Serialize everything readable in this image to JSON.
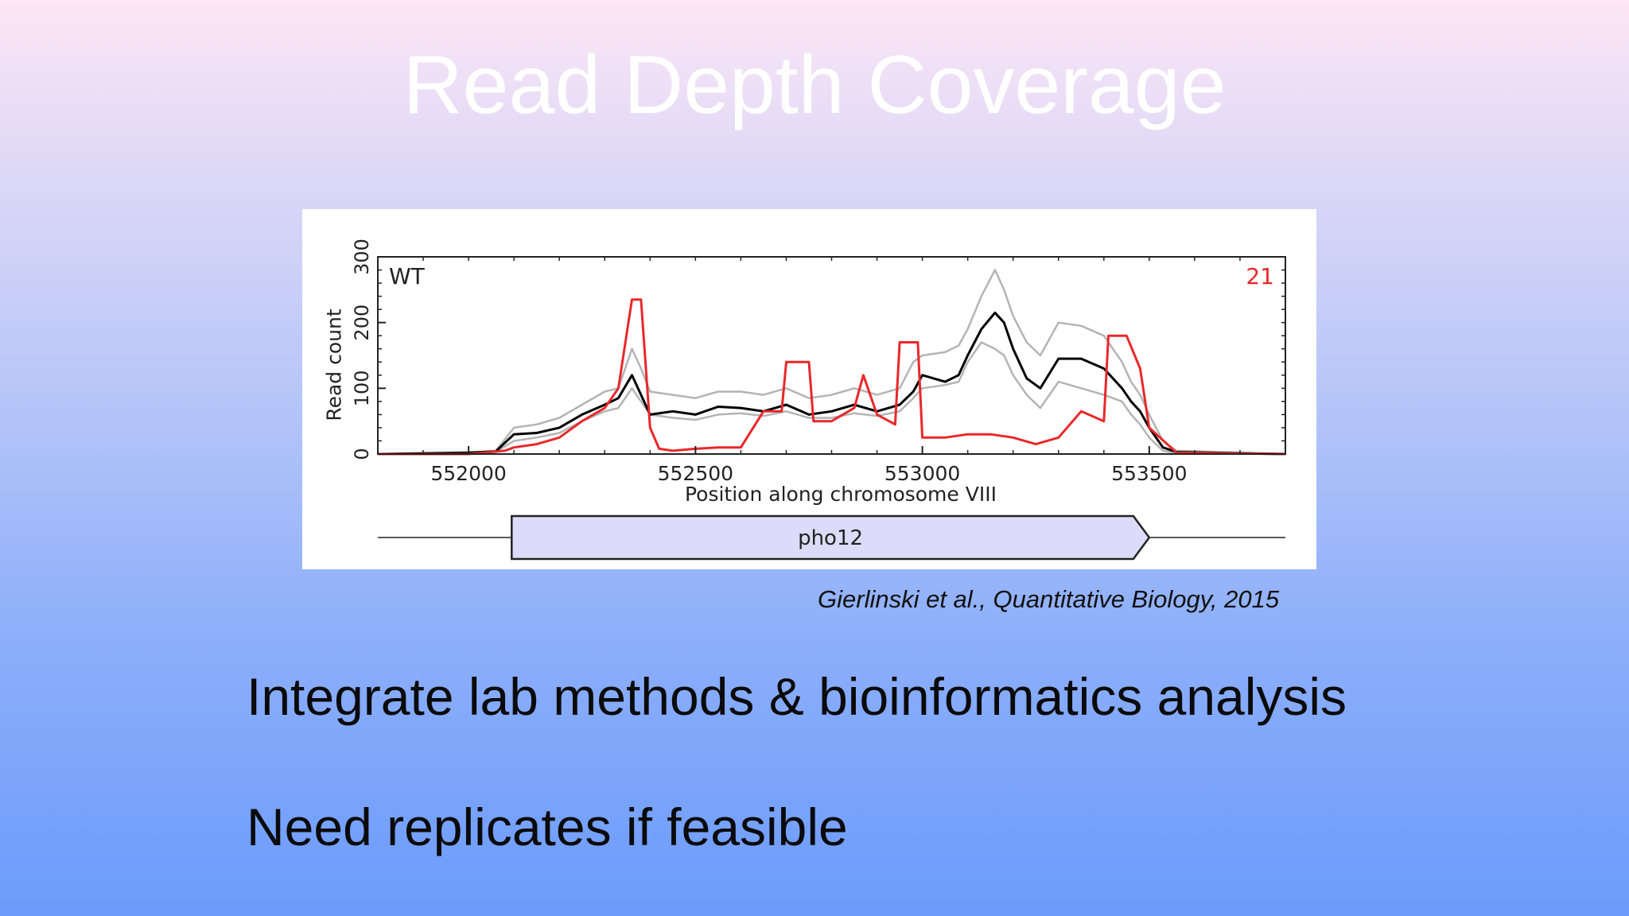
{
  "slide": {
    "title": "Read Depth Coverage",
    "citation": "Gierlinski et al., Quantitative Biology, 2015",
    "bullets": [
      "Integrate lab methods & bioinformatics analysis",
      "Need replicates if feasible"
    ]
  },
  "colors": {
    "red_series": "#e8282a",
    "mean_series": "#000000",
    "band_series": "#b4b4b4",
    "gene_fill": "#dcdcfa"
  },
  "chart_data": {
    "type": "line",
    "title": "",
    "xlabel": "Position along chromosome VIII",
    "ylabel": "Read count",
    "xlim": [
      551800,
      553800
    ],
    "ylim": [
      0,
      300
    ],
    "xticks": [
      552000,
      552500,
      553000,
      553500
    ],
    "yticks": [
      0,
      100,
      200,
      300
    ],
    "grid": false,
    "annotations": {
      "top_left": "WT",
      "top_right": "21"
    },
    "gene": {
      "label": "pho12",
      "start": 552095,
      "end": 553500,
      "strand": "+"
    },
    "series": [
      {
        "name": "",
        "role": "upper band",
        "x": [
          551800,
          552000,
          552060,
          552100,
          552150,
          552200,
          552250,
          552300,
          552330,
          552360,
          552380,
          552400,
          552450,
          552500,
          552550,
          552600,
          552650,
          552700,
          552750,
          552800,
          552850,
          552900,
          552950,
          552980,
          553000,
          553050,
          553080,
          553100,
          553130,
          553160,
          553180,
          553200,
          553230,
          553260,
          553300,
          553350,
          553400,
          553440,
          553460,
          553480,
          553500,
          553530,
          553560,
          553800
        ],
        "y": [
          0,
          2,
          5,
          40,
          45,
          55,
          75,
          95,
          100,
          160,
          130,
          95,
          90,
          85,
          95,
          95,
          90,
          100,
          85,
          90,
          100,
          90,
          100,
          140,
          150,
          155,
          165,
          190,
          240,
          280,
          250,
          210,
          170,
          150,
          200,
          195,
          180,
          140,
          110,
          90,
          60,
          20,
          5,
          0
        ]
      },
      {
        "name": "",
        "role": "lower band",
        "x": [
          551800,
          552000,
          552060,
          552100,
          552150,
          552200,
          552250,
          552300,
          552330,
          552360,
          552380,
          552400,
          552450,
          552500,
          552550,
          552600,
          552650,
          552700,
          552750,
          552800,
          552850,
          552900,
          552950,
          552980,
          553000,
          553050,
          553080,
          553100,
          553130,
          553160,
          553180,
          553200,
          553230,
          553260,
          553300,
          553350,
          553400,
          553440,
          553460,
          553480,
          553500,
          553530,
          553560,
          553800
        ],
        "y": [
          0,
          1,
          3,
          20,
          25,
          32,
          50,
          65,
          70,
          100,
          80,
          60,
          55,
          52,
          60,
          62,
          58,
          65,
          55,
          55,
          62,
          58,
          65,
          85,
          100,
          105,
          110,
          140,
          170,
          160,
          150,
          120,
          90,
          70,
          110,
          100,
          90,
          80,
          60,
          45,
          25,
          5,
          1,
          0
        ]
      },
      {
        "name": "",
        "role": "mean",
        "x": [
          551800,
          552000,
          552060,
          552100,
          552150,
          552200,
          552250,
          552300,
          552330,
          552360,
          552380,
          552400,
          552450,
          552500,
          552550,
          552600,
          552650,
          552700,
          552750,
          552800,
          552850,
          552900,
          552950,
          552980,
          553000,
          553050,
          553080,
          553100,
          553130,
          553160,
          553180,
          553200,
          553230,
          553260,
          553300,
          553350,
          553400,
          553440,
          553460,
          553480,
          553500,
          553530,
          553560,
          553800
        ],
        "y": [
          0,
          2,
          4,
          30,
          32,
          40,
          60,
          75,
          85,
          120,
          90,
          60,
          65,
          60,
          72,
          70,
          65,
          75,
          60,
          65,
          75,
          65,
          75,
          95,
          120,
          110,
          120,
          150,
          190,
          215,
          200,
          160,
          115,
          100,
          145,
          145,
          130,
          100,
          80,
          65,
          40,
          10,
          3,
          0
        ]
      },
      {
        "name": "",
        "role": "sample 21",
        "x": [
          551800,
          552000,
          552080,
          552100,
          552150,
          552200,
          552250,
          552300,
          552330,
          552360,
          552380,
          552400,
          552420,
          552450,
          552500,
          552550,
          552600,
          552650,
          552690,
          552700,
          552750,
          552760,
          552800,
          552850,
          552870,
          552900,
          552940,
          552950,
          552960,
          552990,
          553000,
          553050,
          553100,
          553150,
          553200,
          553250,
          553300,
          553350,
          553400,
          553410,
          553450,
          553480,
          553500,
          553560,
          553800
        ],
        "y": [
          0,
          0,
          5,
          10,
          15,
          25,
          50,
          70,
          100,
          235,
          235,
          40,
          8,
          5,
          8,
          10,
          10,
          65,
          65,
          140,
          140,
          50,
          50,
          70,
          120,
          60,
          45,
          170,
          170,
          170,
          25,
          25,
          30,
          30,
          25,
          15,
          25,
          65,
          50,
          180,
          180,
          130,
          40,
          2,
          0
        ]
      }
    ]
  }
}
